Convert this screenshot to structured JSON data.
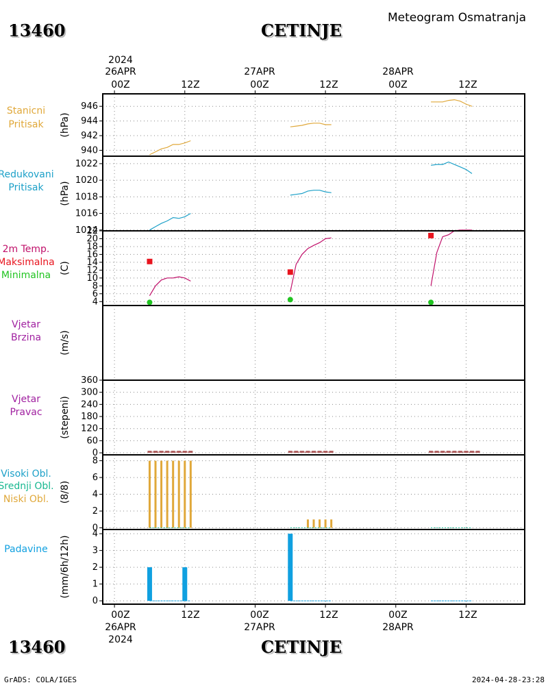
{
  "header": {
    "station_id": "13460",
    "station_name": "CETINJE",
    "title": "Meteogram Osmatranja"
  },
  "footer": {
    "station_id": "13460",
    "station_name": "CETINJE",
    "credit": "GrADS: COLA/IGES",
    "timestamp": "2024-04-28-23:28"
  },
  "time_axis": {
    "start_year": "2024",
    "days": [
      "26APR",
      "27APR",
      "28APR"
    ],
    "hour_labels": [
      "00Z",
      "12Z"
    ],
    "range_hours": [
      -2,
      70
    ]
  },
  "colors": {
    "pressure": "#e0a83a",
    "reduced": "#1ca0c8",
    "temp": "#c0106a",
    "max": "#e8141e",
    "min": "#21c421",
    "wind": "#a020a0",
    "high_cloud": "#1ca0c8",
    "mid_cloud": "#18b890",
    "low_cloud": "#e0a83a",
    "precip": "#10a0e0",
    "dirbar": "#b06060"
  },
  "chart_data": [
    {
      "type": "line",
      "panel": "station_pressure",
      "labels": [
        "Stanicni",
        "Pritisak"
      ],
      "ylabel": "(hPa)",
      "ylim": [
        939.2,
        947.7
      ],
      "yticks": [
        940,
        942,
        944,
        946
      ],
      "x": [
        6,
        7,
        8,
        9,
        10,
        11,
        12,
        13
      ],
      "y": [
        939.4,
        939.8,
        940.2,
        940.4,
        940.8,
        940.8,
        941.0,
        941.3
      ],
      "x2": [
        30,
        31,
        32,
        33,
        34,
        35,
        36,
        37
      ],
      "y2": [
        943.2,
        943.3,
        943.4,
        943.6,
        943.7,
        943.7,
        943.5,
        943.5
      ],
      "x3": [
        54,
        55,
        56,
        57,
        58,
        59,
        60,
        61
      ],
      "y3": [
        946.6,
        946.6,
        946.6,
        946.8,
        946.9,
        946.7,
        946.3,
        946.0
      ]
    },
    {
      "type": "line",
      "panel": "reduced_pressure",
      "labels": [
        "Redukovani",
        "Pritisak"
      ],
      "ylabel": "(hPa)",
      "ylim": [
        1013.9,
        1022.9
      ],
      "yticks": [
        1014,
        1016,
        1018,
        1020,
        1022
      ],
      "x": [
        6,
        7,
        8,
        9,
        10,
        11,
        12,
        13
      ],
      "y": [
        1014.0,
        1014.4,
        1014.8,
        1015.1,
        1015.5,
        1015.4,
        1015.6,
        1016.0
      ],
      "x2": [
        30,
        31,
        32,
        33,
        34,
        35,
        36,
        37
      ],
      "y2": [
        1018.2,
        1018.3,
        1018.4,
        1018.7,
        1018.8,
        1018.8,
        1018.6,
        1018.5
      ],
      "x3": [
        54,
        55,
        56,
        57,
        58,
        59,
        60,
        61
      ],
      "y3": [
        1021.8,
        1021.9,
        1021.9,
        1022.2,
        1021.9,
        1021.6,
        1021.3,
        1020.8
      ]
    },
    {
      "type": "line",
      "panel": "temperature",
      "labels": [
        "2m Temp.",
        "Maksimalna",
        "Minimalna"
      ],
      "ylabel": "(C)",
      "ylim": [
        3,
        22
      ],
      "yticks": [
        4,
        6,
        8,
        10,
        12,
        14,
        16,
        18,
        20,
        22
      ],
      "x": [
        6,
        7,
        8,
        9,
        10,
        11,
        12,
        13
      ],
      "y": [
        5.5,
        8.0,
        9.5,
        10.0,
        10.0,
        10.3,
        10.0,
        9.2
      ],
      "x2": [
        30,
        31,
        32,
        33,
        34,
        35,
        36,
        37
      ],
      "y2": [
        6.5,
        13.5,
        16.0,
        17.5,
        18.3,
        19.0,
        20.0,
        20.2
      ],
      "x3": [
        54,
        55,
        56,
        57,
        58,
        59,
        60,
        61
      ],
      "y3": [
        8.0,
        16.5,
        20.5,
        21.0,
        22.0,
        22.2,
        22.2,
        22.2
      ],
      "max_points": [
        {
          "x": 6,
          "y": 14.2
        },
        {
          "x": 30,
          "y": 11.5
        },
        {
          "x": 54,
          "y": 20.8
        }
      ],
      "min_points": [
        {
          "x": 6,
          "y": 3.8
        },
        {
          "x": 30,
          "y": 4.5
        },
        {
          "x": 54,
          "y": 3.8
        }
      ]
    },
    {
      "type": "line",
      "panel": "wind_speed",
      "labels": [
        "Vjetar",
        "Brzina"
      ],
      "ylabel": "(m/s)"
    },
    {
      "type": "bar",
      "panel": "wind_direction",
      "labels": [
        "Vjetar",
        "Pravac"
      ],
      "ylabel": "(stepeni)",
      "ylim": [
        -10,
        360
      ],
      "yticks": [
        0,
        60,
        120,
        180,
        240,
        300,
        360
      ],
      "x": [
        6,
        7,
        8,
        9,
        10,
        11,
        12,
        13,
        30,
        31,
        32,
        33,
        34,
        35,
        36,
        37,
        54,
        55,
        56,
        57,
        58,
        59,
        60,
        61,
        62
      ],
      "values": [
        0,
        0,
        0,
        0,
        0,
        0,
        0,
        0,
        0,
        0,
        0,
        0,
        0,
        0,
        0,
        0,
        0,
        0,
        0,
        0,
        0,
        0,
        0,
        0,
        0
      ]
    },
    {
      "type": "bar",
      "panel": "clouds",
      "labels": [
        "Visoki Obl.",
        "Srednji Obl.",
        "Niski Obl."
      ],
      "ylabel": "(8/8)",
      "ylim": [
        -0.2,
        8.7
      ],
      "yticks": [
        0,
        2,
        4,
        6,
        8
      ],
      "x": [
        6,
        7,
        8,
        9,
        10,
        11,
        12,
        13,
        30,
        31,
        32,
        33,
        34,
        35,
        36,
        37,
        54,
        55,
        56,
        57,
        58,
        59,
        60,
        61
      ],
      "low": [
        8,
        8,
        8,
        8,
        8,
        8,
        8,
        8,
        0,
        0,
        0,
        1,
        1,
        1,
        1,
        1,
        0,
        0,
        0,
        0,
        0,
        0,
        0,
        0
      ]
    },
    {
      "type": "bar",
      "panel": "precipitation",
      "labels": [
        "Padavine"
      ],
      "ylabel": "(mm/6h/12h)",
      "ylim": [
        -0.2,
        4.25
      ],
      "yticks": [
        0,
        1,
        2,
        3,
        4
      ],
      "bars": [
        {
          "x": 6,
          "y": 2.0
        },
        {
          "x": 12,
          "y": 2.0
        },
        {
          "x": 30,
          "y": 4.0
        }
      ],
      "baseline": [
        [
          6,
          13
        ],
        [
          30,
          37
        ],
        [
          54,
          61
        ]
      ]
    }
  ]
}
